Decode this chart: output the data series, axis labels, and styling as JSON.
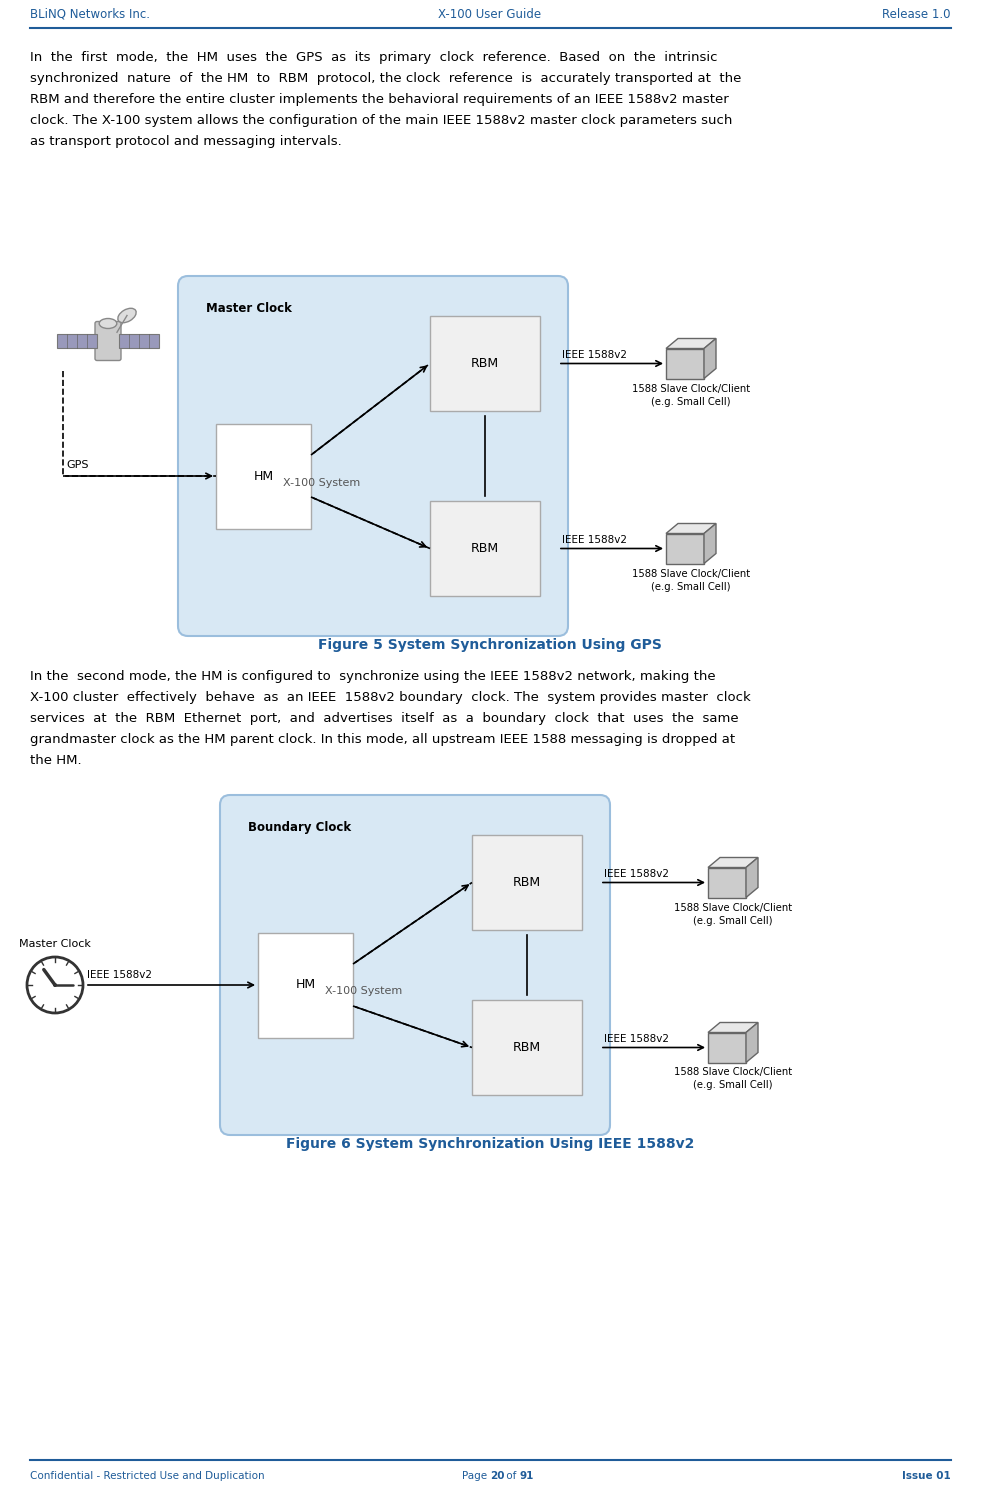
{
  "header_left": "BLiNQ Networks Inc.",
  "header_center": "X-100 User Guide",
  "header_right": "Release 1.0",
  "footer_left": "Confidential - Restricted Use and Duplication",
  "footer_right": "Issue 01",
  "header_color": "#1F5C99",
  "body1_lines": [
    "In  the  first  mode,  the  HM  uses  the  GPS  as  its  primary  clock  reference.  Based  on  the  intrinsic",
    "synchronized  nature  of  the HM  to  RBM  protocol, the clock  reference  is  accurately transported at  the",
    "RBM and therefore the entire cluster implements the behavioral requirements of an IEEE 1588v2 master",
    "clock. The X-100 system allows the configuration of the main IEEE 1588v2 master clock parameters such",
    "as transport protocol and messaging intervals."
  ],
  "figure1_caption": "Figure 5 System Synchronization Using GPS",
  "body2_lines": [
    "In the  second mode, the HM is configured to  synchronize using the IEEE 1588v2 network, making the",
    "X-100 cluster  effectively  behave  as  an IEEE  1588v2 boundary  clock. The  system provides master  clock",
    "services  at  the  RBM  Ethernet  port,  and  advertises  itself  as  a  boundary  clock  that  uses  the  same",
    "grandmaster clock as the HM parent clock. In this mode, all upstream IEEE 1588 messaging is dropped at",
    "the HM."
  ],
  "figure2_caption": "Figure 6 System Synchronization Using IEEE 1588v2",
  "box_fill": "#D8E8F4",
  "box_border": "#9BBEDD",
  "rbm_fill": "#F0F0F0",
  "rbm_border": "#AAAAAA",
  "hm_fill": "#FFFFFF",
  "hm_border": "#AAAAAA",
  "client_fill": "#DDDDDD",
  "client_border": "#888888",
  "arrow_color": "#000000",
  "line_color": "#000000",
  "text_black": "#000000",
  "text_gray": "#555555"
}
